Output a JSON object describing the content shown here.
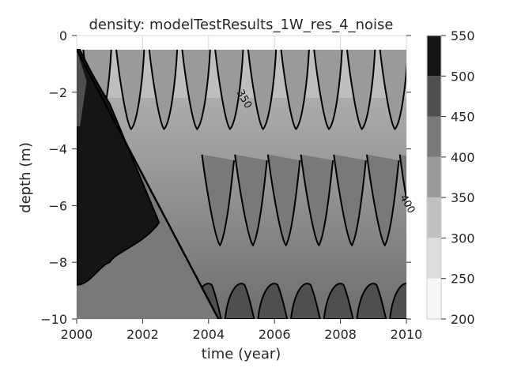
{
  "chart_data": {
    "type": "contourf",
    "title": "density: modelTestResults_1W_res_4_noise",
    "xlabel": "time (year)",
    "ylabel": "depth (m)",
    "xlim": [
      2000,
      2010
    ],
    "ylim": [
      -10,
      0
    ],
    "x_ticks": [
      "2000",
      "2002",
      "2004",
      "2006",
      "2008",
      "2010"
    ],
    "y_ticks": [
      "0",
      "−2",
      "−4",
      "−6",
      "−8",
      "−10"
    ],
    "grid": true,
    "colorbar": {
      "levels": [
        200,
        250,
        300,
        350,
        400,
        450,
        500,
        550
      ],
      "tick_labels": [
        "200",
        "250",
        "300",
        "350",
        "400",
        "450",
        "500",
        "550"
      ],
      "colors": [
        "#f7f7f7",
        "#dedede",
        "#c0c0c0",
        "#9a9a9a",
        "#797979",
        "#4f4f4f",
        "#151515"
      ]
    },
    "domain_top_depth": -0.5,
    "contour_lines": [
      350,
      400,
      450,
      500
    ],
    "contour_labels": [
      {
        "text": "350",
        "x": 2004.85,
        "y": -2.0
      },
      {
        "text": "400",
        "x": 2009.8,
        "y": -5.7
      }
    ],
    "annual_oscillation_period_years": 1,
    "dense_wedge": {
      "value_range": [
        500,
        550
      ],
      "front_top": [
        2000.0,
        -0.5
      ],
      "front_bottom": [
        2004.3,
        -10.0
      ],
      "lower_boundary_depth_2000": -8.8
    }
  }
}
